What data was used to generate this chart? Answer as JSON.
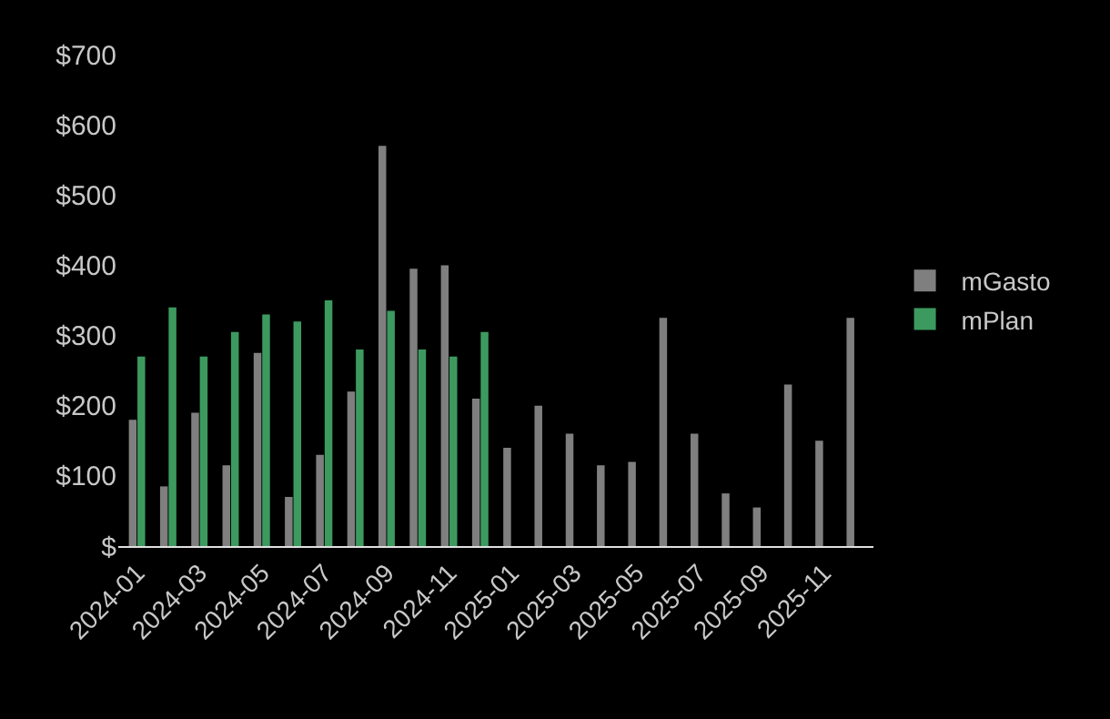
{
  "chart_data": {
    "type": "bar",
    "categories": [
      "2024-01",
      null,
      "2024-03",
      null,
      "2024-05",
      null,
      "2024-07",
      null,
      "2024-09",
      null,
      "2024-11",
      null,
      "2025-01",
      null,
      "2025-03",
      null,
      "2025-05",
      null,
      "2025-07",
      null,
      "2025-09",
      null,
      "2025-11",
      null
    ],
    "series": [
      {
        "name": "mGasto",
        "color": "#7f7f7f",
        "values": [
          180,
          85,
          190,
          115,
          275,
          70,
          130,
          220,
          570,
          395,
          400,
          210,
          140,
          200,
          160,
          115,
          120,
          325,
          160,
          75,
          55,
          230,
          150,
          325
        ]
      },
      {
        "name": "mPlan",
        "color": "#3c9a5f",
        "values": [
          270,
          340,
          270,
          305,
          330,
          320,
          350,
          280,
          335,
          280,
          270,
          305,
          null,
          null,
          null,
          null,
          null,
          null,
          null,
          null,
          null,
          null,
          null,
          null
        ]
      }
    ],
    "ylim": [
      0,
      700
    ],
    "yticks": [
      {
        "value": 0,
        "label": "$"
      },
      {
        "value": 100,
        "label": "$100"
      },
      {
        "value": 200,
        "label": "$200"
      },
      {
        "value": 300,
        "label": "$300"
      },
      {
        "value": 400,
        "label": "$400"
      },
      {
        "value": 500,
        "label": "$500"
      },
      {
        "value": 600,
        "label": "$600"
      },
      {
        "value": 700,
        "label": "$700"
      }
    ],
    "grid": false,
    "legend": "right"
  }
}
